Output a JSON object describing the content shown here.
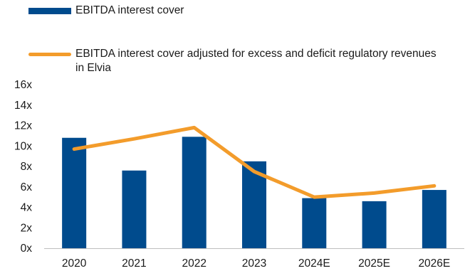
{
  "chart_data": {
    "type": "bar",
    "categories": [
      "2020",
      "2021",
      "2022",
      "2023",
      "2024E",
      "2025E",
      "2026E"
    ],
    "series": [
      {
        "name": "EBITDA interest cover",
        "type": "bar",
        "color": "#004b8d",
        "values": [
          10.8,
          7.6,
          10.9,
          8.5,
          4.9,
          4.6,
          5.7
        ]
      },
      {
        "name": "EBITDA interest cover adjusted for excess and deficit regulatory revenues in Elvia",
        "type": "line",
        "color": "#f39c2b",
        "values": [
          9.7,
          10.7,
          11.8,
          7.5,
          5.0,
          5.4,
          6.1
        ]
      }
    ],
    "y_tick_labels": [
      "0x",
      "2x",
      "4x",
      "6x",
      "8x",
      "10x",
      "12x",
      "14x",
      "16x"
    ],
    "ylim": [
      0,
      16
    ],
    "y_tick_step": 2,
    "grid": false,
    "legend_position": "top-left"
  }
}
